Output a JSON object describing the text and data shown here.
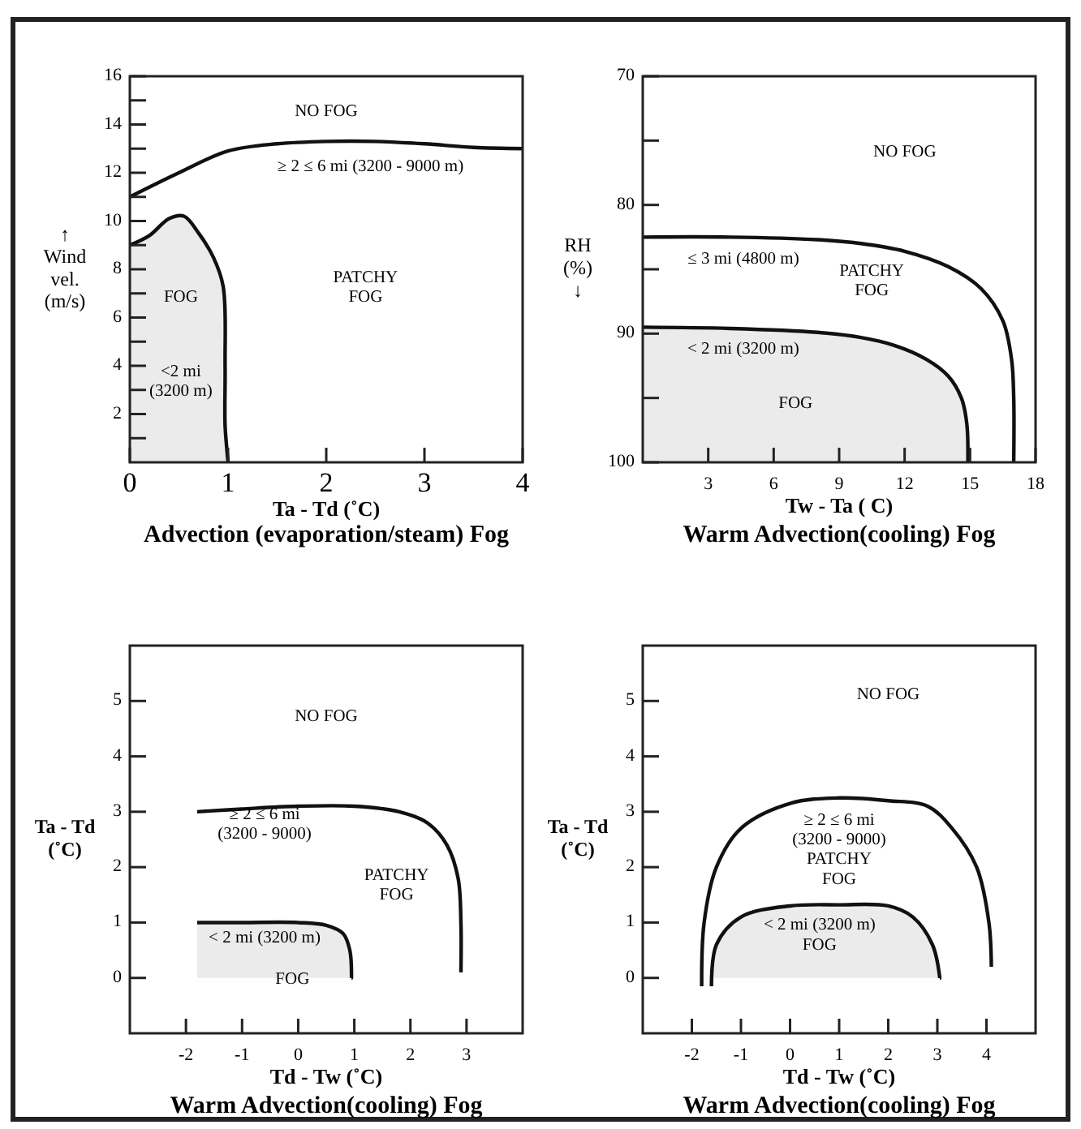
{
  "chart_data": [
    {
      "type": "line",
      "title": "Advection (evaporation/steam) Fog",
      "xlabel": "Ta - Td  (˚C)",
      "ylabel": "↑\nWind\nvel.\n(m/s)",
      "xlim": [
        0,
        4
      ],
      "ylim": [
        0,
        16
      ],
      "xticks": [
        0,
        1,
        2,
        3,
        4
      ],
      "yticks": [
        {
          "value": 1,
          "label": null
        },
        2,
        {
          "value": 3,
          "label": null
        },
        4,
        {
          "value": 5,
          "label": null
        },
        6,
        {
          "value": 7,
          "label": null
        },
        8,
        {
          "value": 9,
          "label": null
        },
        10,
        {
          "value": 11,
          "label": null
        },
        12,
        {
          "value": 13,
          "label": null
        },
        14,
        {
          "value": 15,
          "label": null
        },
        16
      ],
      "series": [
        {
          "color": "#111111",
          "x": [
            0,
            0.5,
            1,
            1.5,
            2,
            2.5,
            3,
            3.5,
            4
          ],
          "values": [
            11,
            12,
            12.9,
            13.2,
            13.3,
            13.3,
            13.2,
            13.05,
            13
          ]
        },
        {
          "type": "area",
          "color": "#ebebeb",
          "x": [
            0,
            0.2,
            0.4,
            0.55,
            0.7,
            0.85,
            0.95,
            0.97,
            0.97,
            1
          ],
          "values": [
            9,
            9.4,
            10.1,
            10.2,
            9.5,
            8.5,
            7.3,
            4,
            1.5,
            0
          ]
        }
      ],
      "annotations": [
        "NO FOG",
        "≥ 2 ≤ 6 mi (3200 - 9000 m)",
        "PATCHY\nFOG",
        "FOG",
        "<2 mi\n(3200 m)"
      ]
    },
    {
      "type": "line",
      "title": "Warm Advection(cooling) Fog",
      "xlabel": "Tw - Ta  ( C)",
      "ylabel": "RH\n(%)\n↓",
      "xlim": [
        0,
        18
      ],
      "ylim": [
        100,
        70
      ],
      "xticks": [
        3,
        6,
        9,
        12,
        15,
        18
      ],
      "yticks": [
        70,
        {
          "value": 75,
          "label": null
        },
        80,
        {
          "value": 85,
          "label": null
        },
        90,
        {
          "value": 95,
          "label": null
        },
        100
      ],
      "series": [
        {
          "color": "#111111",
          "x": [
            0,
            4,
            8,
            10,
            12,
            14,
            15.5,
            16.5,
            16.9,
            17,
            17
          ],
          "values": [
            82.5,
            82.5,
            82.7,
            83,
            83.6,
            84.8,
            86.5,
            89,
            92,
            95,
            100
          ]
        },
        {
          "color": "#111111",
          "x": [
            0,
            4,
            8,
            10,
            11.5,
            13,
            14,
            14.6,
            14.85,
            14.9
          ],
          "values": [
            89.5,
            89.6,
            89.9,
            90.3,
            90.9,
            92,
            93.3,
            95,
            97,
            100
          ],
          "lower": [
            89.5,
            89.6,
            89.9,
            90.3,
            90.9,
            92,
            93.3,
            95,
            97,
            100
          ],
          "upper": [
            100,
            100,
            100,
            100,
            100,
            100,
            100,
            100,
            100,
            100
          ]
        }
      ],
      "annotations": [
        "NO FOG",
        "≤ 3 mi (4800 m)",
        "PATCHY\nFOG",
        "< 2 mi (3200 m)",
        "FOG"
      ]
    },
    {
      "type": "line",
      "title": "Warm Advection(cooling) Fog",
      "xlabel": "Td - Tw (˚C)",
      "ylabel": "Ta - Td\n(˚C)",
      "xlim": [
        -3,
        4
      ],
      "ylim": [
        -1,
        6
      ],
      "xticks": [
        -2,
        -1,
        0,
        1,
        2,
        3
      ],
      "yticks": [
        0,
        1,
        2,
        3,
        4,
        5
      ],
      "series": [
        {
          "color": "#111111",
          "x": [
            -1.8,
            -1,
            0,
            1,
            1.8,
            2.3,
            2.65,
            2.85,
            2.9,
            2.9
          ],
          "values": [
            3,
            3.05,
            3.1,
            3.1,
            3,
            2.8,
            2.4,
            1.8,
            1,
            0.1
          ]
        },
        {
          "type": "area",
          "color": "#ebebeb",
          "x": [
            -1.8,
            -1,
            0,
            0.5,
            0.8,
            0.92,
            0.95
          ],
          "values": [
            1,
            1,
            1,
            0.95,
            0.8,
            0.5,
            0
          ]
        }
      ],
      "annotations": [
        "NO FOG",
        "≥ 2 ≤ 6 mi\n(3200 - 9000)",
        "PATCHY\nFOG",
        "< 2 mi (3200 m)",
        "FOG"
      ]
    },
    {
      "type": "line",
      "title": "Warm Advection(cooling) Fog",
      "xlabel": "Td - Tw (˚C)",
      "ylabel": "Ta - Td\n(˚C)",
      "xlim": [
        -3,
        5
      ],
      "ylim": [
        -1,
        6
      ],
      "xticks": [
        -2,
        -1,
        0,
        1,
        2,
        3,
        4
      ],
      "yticks": [
        0,
        1,
        2,
        3,
        4,
        5
      ],
      "series": [
        {
          "color": "#111111",
          "x": [
            -1.8,
            -1.75,
            -1.5,
            -1,
            0,
            1,
            2,
            2.8,
            3.3,
            3.8,
            4.05,
            4.1
          ],
          "values": [
            -0.15,
            1,
            2,
            2.7,
            3.15,
            3.25,
            3.2,
            3.1,
            2.7,
            2,
            1,
            0.2
          ]
        },
        {
          "type": "area",
          "color": "#ebebeb",
          "x": [
            -1.6,
            -1.5,
            -1,
            0,
            1,
            2,
            2.5,
            2.9,
            3.05
          ],
          "values": [
            -0.15,
            0.6,
            1.1,
            1.3,
            1.32,
            1.3,
            1.1,
            0.6,
            0
          ]
        }
      ],
      "annotations": [
        "NO FOG",
        "≥ 2 ≤ 6 mi\n(3200 - 9000)\nPATCHY\nFOG",
        "< 2 mi (3200 m)\nFOG"
      ]
    }
  ]
}
